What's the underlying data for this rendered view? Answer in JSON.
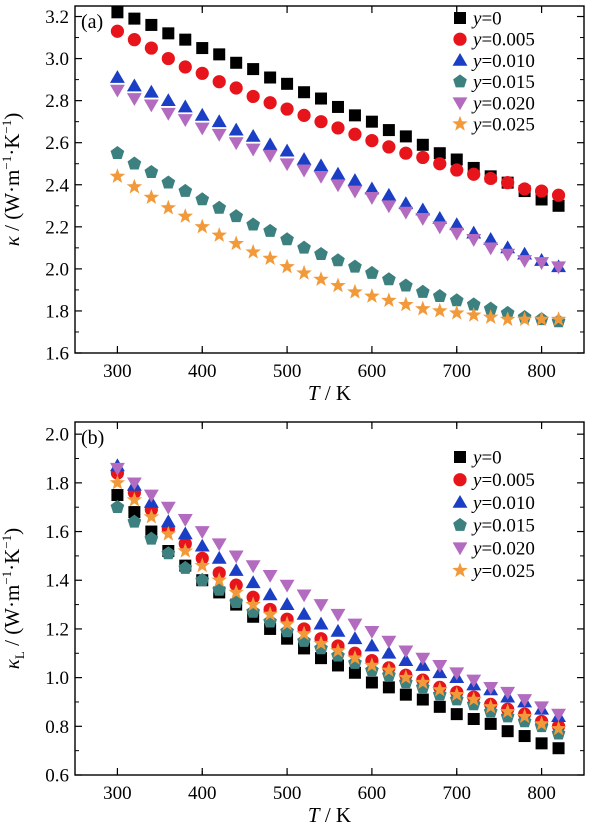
{
  "chart_data": [
    {
      "panel_label": "(a)",
      "type": "scatter",
      "xlabel": "T / K",
      "ylabel": "κ / (W·m⁻¹·K⁻¹)",
      "xlim": [
        250,
        850
      ],
      "ylim": [
        1.6,
        3.25
      ],
      "xticks": [
        300,
        400,
        500,
        600,
        700,
        800
      ],
      "xtick_labels": [
        "300",
        "400",
        "500",
        "600",
        "700",
        "800"
      ],
      "yticks": [
        1.6,
        1.8,
        2.0,
        2.2,
        2.4,
        2.6,
        2.8,
        3.0,
        3.2
      ],
      "ytick_labels": [
        "1.6",
        "1.8",
        "2.0",
        "2.2",
        "2.4",
        "2.6",
        "2.8",
        "3.0",
        "3.2"
      ],
      "grid": false,
      "legend_position": "top-right",
      "x": [
        300,
        320,
        340,
        360,
        380,
        400,
        420,
        440,
        460,
        480,
        500,
        520,
        540,
        560,
        580,
        600,
        620,
        640,
        660,
        680,
        700,
        720,
        740,
        760,
        780,
        800,
        820
      ],
      "series": [
        {
          "name": "y=0",
          "name_var": "y",
          "name_val": "0",
          "marker": "square",
          "color": "#000000",
          "values": [
            3.22,
            3.19,
            3.16,
            3.12,
            3.09,
            3.05,
            3.02,
            2.98,
            2.95,
            2.91,
            2.88,
            2.84,
            2.81,
            2.77,
            2.73,
            2.7,
            2.66,
            2.63,
            2.59,
            2.55,
            2.52,
            2.48,
            2.44,
            2.41,
            2.37,
            2.33,
            2.3
          ]
        },
        {
          "name": "y=0.005",
          "name_var": "y",
          "name_val": "=0.005",
          "marker": "circle",
          "color": "#e8141b",
          "values": [
            3.13,
            3.09,
            3.05,
            3.0,
            2.96,
            2.93,
            2.89,
            2.86,
            2.82,
            2.79,
            2.76,
            2.73,
            2.7,
            2.67,
            2.64,
            2.61,
            2.58,
            2.55,
            2.53,
            2.5,
            2.47,
            2.45,
            2.43,
            2.41,
            2.38,
            2.37,
            2.35
          ]
        },
        {
          "name": "y=0.010",
          "name_var": "y",
          "name_val": "=0.010",
          "marker": "triangle",
          "color": "#1a3fc4",
          "values": [
            2.91,
            2.87,
            2.84,
            2.8,
            2.77,
            2.73,
            2.7,
            2.66,
            2.63,
            2.59,
            2.56,
            2.52,
            2.49,
            2.45,
            2.42,
            2.38,
            2.35,
            2.31,
            2.28,
            2.24,
            2.21,
            2.17,
            2.14,
            2.1,
            2.07,
            2.04,
            2.01
          ]
        },
        {
          "name": "y=0.015",
          "name_var": "y",
          "name_val": "=0.015",
          "marker": "pentagon",
          "color": "#3d8080",
          "values": [
            2.55,
            2.5,
            2.46,
            2.41,
            2.37,
            2.33,
            2.29,
            2.25,
            2.21,
            2.18,
            2.14,
            2.1,
            2.07,
            2.04,
            2.01,
            1.98,
            1.95,
            1.92,
            1.89,
            1.87,
            1.85,
            1.83,
            1.81,
            1.79,
            1.77,
            1.76,
            1.75
          ]
        },
        {
          "name": "y=0.020",
          "name_var": "y",
          "name_val": "=0.020",
          "marker": "triangle-down",
          "color": "#b36bc0",
          "values": [
            2.85,
            2.81,
            2.78,
            2.74,
            2.71,
            2.67,
            2.64,
            2.6,
            2.57,
            2.54,
            2.5,
            2.47,
            2.44,
            2.4,
            2.37,
            2.34,
            2.3,
            2.27,
            2.24,
            2.2,
            2.17,
            2.14,
            2.1,
            2.07,
            2.04,
            2.03,
            2.01
          ]
        },
        {
          "name": "y=0.025",
          "name_var": "y",
          "name_val": "=0.025",
          "marker": "star",
          "color": "#f29a3a",
          "values": [
            2.44,
            2.39,
            2.34,
            2.29,
            2.25,
            2.2,
            2.16,
            2.12,
            2.08,
            2.05,
            2.01,
            1.98,
            1.95,
            1.92,
            1.89,
            1.87,
            1.85,
            1.83,
            1.81,
            1.8,
            1.79,
            1.78,
            1.77,
            1.76,
            1.76,
            1.76,
            1.76
          ]
        }
      ]
    },
    {
      "panel_label": "(b)",
      "type": "scatter",
      "xlabel": "T / K",
      "ylabel": "κL / (W·m⁻¹·K⁻¹)",
      "xlim": [
        250,
        850
      ],
      "ylim": [
        0.6,
        2.05
      ],
      "xticks": [
        300,
        400,
        500,
        600,
        700,
        800
      ],
      "xtick_labels": [
        "300",
        "400",
        "500",
        "600",
        "700",
        "800"
      ],
      "yticks": [
        0.6,
        0.8,
        1.0,
        1.2,
        1.4,
        1.6,
        1.8,
        2.0
      ],
      "ytick_labels": [
        "0.6",
        "0.8",
        "1.0",
        "1.2",
        "1.4",
        "1.6",
        "1.8",
        "2.0"
      ],
      "grid": false,
      "legend_position": "top-right",
      "x": [
        300,
        320,
        340,
        360,
        380,
        400,
        420,
        440,
        460,
        480,
        500,
        520,
        540,
        560,
        580,
        600,
        620,
        640,
        660,
        680,
        700,
        720,
        740,
        760,
        780,
        800,
        820
      ],
      "series": [
        {
          "name": "y=0",
          "name_var": "y",
          "name_val": "=0",
          "marker": "square",
          "color": "#000000",
          "values": [
            1.75,
            1.68,
            1.6,
            1.52,
            1.46,
            1.4,
            1.35,
            1.3,
            1.25,
            1.2,
            1.16,
            1.12,
            1.08,
            1.05,
            1.02,
            0.98,
            0.96,
            0.93,
            0.91,
            0.88,
            0.85,
            0.83,
            0.81,
            0.78,
            0.76,
            0.73,
            0.71
          ]
        },
        {
          "name": "y=0.005",
          "name_var": "y",
          "name_val": "=0.005",
          "marker": "circle",
          "color": "#e8141b",
          "values": [
            1.84,
            1.76,
            1.69,
            1.61,
            1.55,
            1.49,
            1.43,
            1.38,
            1.33,
            1.28,
            1.24,
            1.2,
            1.16,
            1.13,
            1.1,
            1.07,
            1.04,
            1.01,
            0.99,
            0.96,
            0.94,
            0.92,
            0.89,
            0.87,
            0.85,
            0.82,
            0.8
          ]
        },
        {
          "name": "y=0.010",
          "name_var": "y",
          "name_val": "=0.010",
          "marker": "triangle",
          "color": "#1a3fc4",
          "values": [
            1.87,
            1.79,
            1.72,
            1.64,
            1.59,
            1.54,
            1.49,
            1.44,
            1.39,
            1.34,
            1.3,
            1.26,
            1.22,
            1.19,
            1.16,
            1.13,
            1.1,
            1.07,
            1.05,
            1.02,
            1.0,
            0.97,
            0.95,
            0.92,
            0.9,
            0.87,
            0.84
          ]
        },
        {
          "name": "y=0.015",
          "name_var": "y",
          "name_val": "=0.015",
          "marker": "pentagon",
          "color": "#3d8080",
          "values": [
            1.7,
            1.64,
            1.57,
            1.51,
            1.45,
            1.4,
            1.36,
            1.31,
            1.27,
            1.23,
            1.19,
            1.15,
            1.12,
            1.09,
            1.06,
            1.03,
            1.01,
            0.98,
            0.96,
            0.93,
            0.91,
            0.89,
            0.86,
            0.84,
            0.82,
            0.8,
            0.77
          ]
        },
        {
          "name": "y=0.020",
          "name_var": "y",
          "name_val": "=0.020",
          "marker": "triangle-down",
          "color": "#b36bc0",
          "values": [
            1.86,
            1.8,
            1.75,
            1.7,
            1.65,
            1.6,
            1.55,
            1.5,
            1.46,
            1.42,
            1.38,
            1.34,
            1.3,
            1.26,
            1.22,
            1.19,
            1.15,
            1.11,
            1.08,
            1.05,
            1.02,
            0.99,
            0.96,
            0.94,
            0.91,
            0.88,
            0.85
          ]
        },
        {
          "name": "y=0.025",
          "name_var": "y",
          "name_val": "=0.025",
          "marker": "star",
          "color": "#f29a3a",
          "values": [
            1.8,
            1.73,
            1.66,
            1.59,
            1.52,
            1.46,
            1.4,
            1.35,
            1.3,
            1.26,
            1.22,
            1.18,
            1.14,
            1.11,
            1.08,
            1.05,
            1.03,
            1.0,
            0.98,
            0.95,
            0.93,
            0.91,
            0.88,
            0.86,
            0.84,
            0.81,
            0.79
          ]
        }
      ]
    }
  ]
}
